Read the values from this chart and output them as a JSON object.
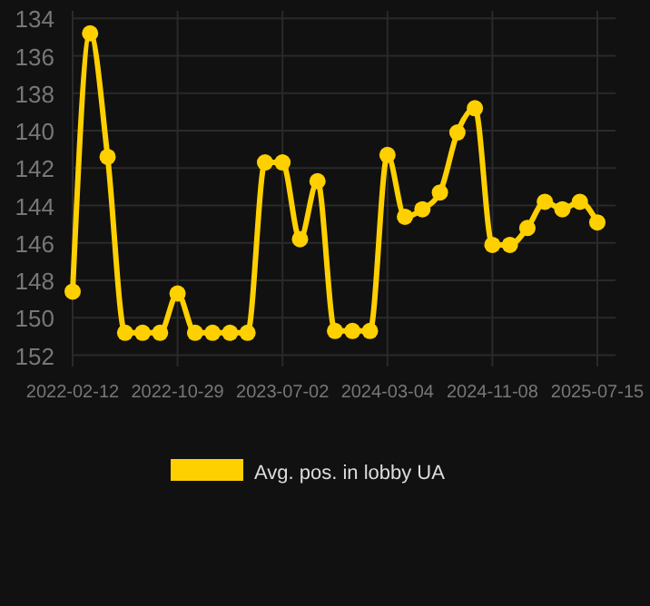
{
  "chart_data": {
    "type": "line",
    "categories": [
      "2022-02-12",
      null,
      null,
      null,
      null,
      null,
      "2022-10-29",
      null,
      null,
      null,
      null,
      null,
      "2023-07-02",
      null,
      null,
      null,
      null,
      null,
      "2024-03-04",
      null,
      null,
      null,
      null,
      null,
      "2024-11-08",
      null,
      null,
      null,
      null,
      null,
      "2025-07-15"
    ],
    "series": [
      {
        "name": "Avg. pos. in lobby UA",
        "color": "#ffd000",
        "values": [
          148.6,
          134.8,
          141.4,
          150.8,
          150.8,
          150.8,
          148.7,
          150.8,
          150.8,
          150.8,
          150.8,
          141.7,
          141.7,
          145.8,
          142.7,
          150.7,
          150.7,
          150.7,
          141.3,
          144.6,
          144.2,
          143.3,
          140.1,
          138.8,
          146.1,
          146.1,
          145.2,
          143.8,
          144.2,
          143.8,
          144.9
        ]
      }
    ],
    "ylim": [
      152.6,
      133.6
    ],
    "yticks": [
      134,
      136,
      138,
      140,
      142,
      144,
      146,
      148,
      150,
      152
    ],
    "grid": true,
    "legend": "bottom",
    "marker": "circle"
  }
}
